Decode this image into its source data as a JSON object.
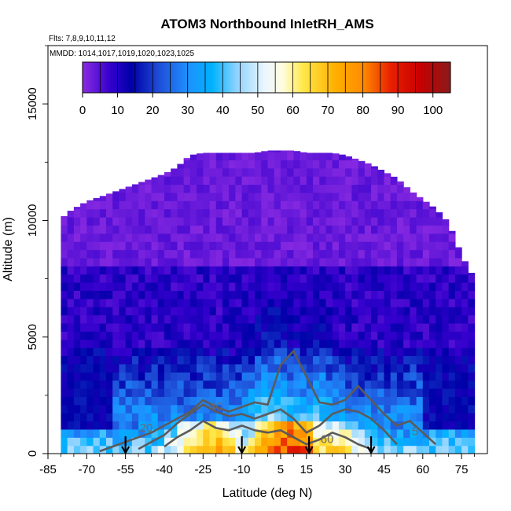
{
  "chart_data": {
    "type": "heatmap",
    "title": "ATOM3 Northbound InletRH_AMS",
    "flights_label": "Flts: 7,8,9,10,11,12",
    "dates_label": "MMDD: 1014,1017,1019,1020,1023,1025",
    "xlabel": "Latitude (deg N)",
    "ylabel": "Altitude (m)",
    "xlim": [
      -85,
      85
    ],
    "ylim": [
      0,
      17500
    ],
    "x_ticks": [
      -85,
      -70,
      -55,
      -40,
      -25,
      -10,
      5,
      15,
      30,
      45,
      60,
      75
    ],
    "y_ticks": [
      0,
      5000,
      10000,
      15000
    ],
    "colorbar": {
      "min": 0,
      "max": 105,
      "ticks": [
        0,
        10,
        20,
        30,
        40,
        50,
        60,
        70,
        80,
        90,
        100
      ],
      "stops": [
        {
          "v": 0,
          "c": "#8a2be2"
        },
        {
          "v": 8,
          "c": "#3300cc"
        },
        {
          "v": 14,
          "c": "#0000a8"
        },
        {
          "v": 22,
          "c": "#1f4fd8"
        },
        {
          "v": 30,
          "c": "#1e90ff"
        },
        {
          "v": 37,
          "c": "#00b2ff"
        },
        {
          "v": 44,
          "c": "#8fd3ff"
        },
        {
          "v": 52,
          "c": "#eaf6ff"
        },
        {
          "v": 57,
          "c": "#fffde0"
        },
        {
          "v": 63,
          "c": "#ffe84a"
        },
        {
          "v": 72,
          "c": "#ffb000"
        },
        {
          "v": 80,
          "c": "#ff8c00"
        },
        {
          "v": 88,
          "c": "#e82000"
        },
        {
          "v": 96,
          "c": "#c80000"
        },
        {
          "v": 105,
          "c": "#8b1a1a"
        }
      ]
    },
    "envelope": {
      "lat": [
        -80,
        -78,
        -75,
        -72,
        -70,
        -68,
        -65,
        -60,
        -55,
        -50,
        -45,
        -40,
        -35,
        -30,
        -25,
        -20,
        -15,
        -10,
        -5,
        0,
        5,
        10,
        15,
        20,
        25,
        30,
        35,
        40,
        45,
        50,
        55,
        60,
        65,
        70,
        75,
        80
      ],
      "top_alt": [
        10000,
        10300,
        10500,
        10700,
        10800,
        10900,
        11000,
        11200,
        11400,
        11600,
        11800,
        12000,
        12300,
        12800,
        12900,
        12900,
        12900,
        12900,
        12900,
        13000,
        13000,
        13000,
        12900,
        12900,
        12900,
        12800,
        12600,
        12400,
        12100,
        11800,
        11300,
        10900,
        10500,
        9900,
        8500,
        7500
      ]
    },
    "boundary_layer_peak": [
      {
        "lat": -25,
        "rh": 72
      },
      {
        "lat": -20,
        "rh": 76
      },
      {
        "lat": 5,
        "rh": 88
      },
      {
        "lat": 10,
        "rh": 92
      },
      {
        "lat": 25,
        "rh": 70
      }
    ],
    "contours": [
      {
        "level": 20,
        "lat": [
          -65,
          -60,
          -55,
          -50,
          -45,
          -40,
          -35,
          -30,
          -25,
          -20,
          -15,
          -10,
          -5,
          0,
          5,
          10,
          15,
          20,
          25,
          30,
          35,
          40,
          45,
          50,
          55,
          60,
          65
        ],
        "alt": [
          100,
          300,
          500,
          700,
          900,
          1200,
          1500,
          1800,
          2300,
          2000,
          1800,
          2000,
          2200,
          2100,
          3800,
          4400,
          3300,
          2200,
          2100,
          2300,
          2900,
          2300,
          1700,
          1200,
          1400,
          900,
          400
        ]
      },
      {
        "level": 40,
        "lat": [
          -50,
          -45,
          -40,
          -35,
          -30,
          -25,
          -20,
          -15,
          -10,
          -5,
          0,
          5,
          10,
          15,
          20,
          25,
          30,
          35,
          40,
          45,
          50
        ],
        "alt": [
          200,
          500,
          800,
          1300,
          1700,
          2100,
          1800,
          1600,
          1700,
          1500,
          1700,
          1900,
          1500,
          900,
          1200,
          1700,
          1900,
          1800,
          1500,
          1000,
          400
        ]
      },
      {
        "level": 60,
        "lat": [
          -40,
          -35,
          -30,
          -25,
          -20,
          -15,
          -10,
          -5,
          0,
          5,
          10,
          15,
          20,
          25,
          30,
          35,
          40
        ],
        "alt": [
          300,
          700,
          1000,
          1400,
          1100,
          1000,
          1200,
          1000,
          900,
          1000,
          700,
          400,
          600,
          900,
          700,
          400,
          200
        ]
      }
    ],
    "contour_labels": [
      {
        "text": "20",
        "lat": -47,
        "alt": 950
      },
      {
        "text": "40",
        "lat": -20,
        "alt": 1850
      },
      {
        "text": "60",
        "lat": 23,
        "alt": 450
      },
      {
        "text": "5",
        "lat": 57,
        "alt": 800
      }
    ],
    "profile_arrows_lat": [
      -55,
      -10,
      16,
      40
    ]
  }
}
